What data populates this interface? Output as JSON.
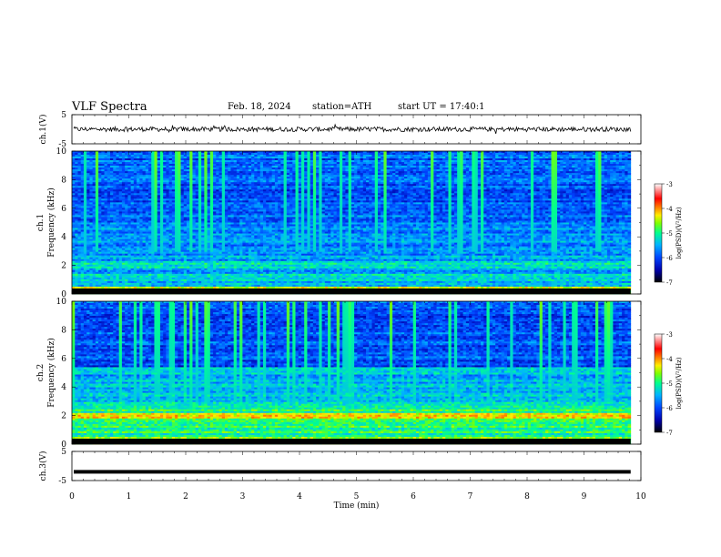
{
  "header": {
    "title": "VLF Spectra",
    "date": "Feb. 18, 2024",
    "station": "station=ATH",
    "start": "start UT = 17:40:1"
  },
  "colors": {
    "trace": "#000000",
    "colormap": [
      "#000000",
      "#0000aa",
      "#0044ff",
      "#00b4ff",
      "#00ff90",
      "#7fff00",
      "#ffee00",
      "#ff7f00",
      "#ff0000",
      "#ffffff"
    ]
  },
  "chart_data": [
    {
      "type": "line",
      "panel": "waveform-ch1",
      "ylabel": "ch.1(V)",
      "ylim": [
        -5,
        5
      ],
      "yticks": [
        5,
        -5
      ],
      "baseline": 0,
      "series": [
        {
          "values_summary": "noisy trace around 0 V, amplitude ~1 V"
        }
      ]
    },
    {
      "type": "heatmap",
      "panel": "spectrogram-ch1",
      "ylabel": "ch.1 Frequency (kHz)",
      "ylim": [
        0,
        10
      ],
      "yticks": [
        0,
        2,
        4,
        6,
        8,
        10
      ],
      "colorbar": {
        "label": "log(PSD)(V²/Hz)",
        "range": [
          -7,
          -3
        ],
        "ticks": [
          -3,
          -4,
          -5,
          -6,
          -7
        ]
      }
    },
    {
      "type": "heatmap",
      "panel": "spectrogram-ch2",
      "ylabel": "ch.2 Frequency (kHz)",
      "ylim": [
        0,
        10
      ],
      "yticks": [
        0,
        2,
        4,
        6,
        8,
        10
      ],
      "colorbar": {
        "label": "log(PSD)(V²/Hz)",
        "range": [
          -7,
          -3
        ],
        "ticks": [
          -3,
          -4,
          -5,
          -6,
          -7
        ]
      }
    },
    {
      "type": "line",
      "panel": "waveform-ch3",
      "ylabel": "ch.3(V)",
      "ylim": [
        -5,
        5
      ],
      "yticks": [
        5,
        -5
      ],
      "baseline": -2
    }
  ],
  "xaxis": {
    "label": "Time (min)",
    "range": [
      0,
      10
    ],
    "ticks": [
      "0",
      "1",
      "2",
      "3",
      "4",
      "5",
      "6",
      "7",
      "8",
      "9",
      "10"
    ],
    "data_end": 9.82
  }
}
